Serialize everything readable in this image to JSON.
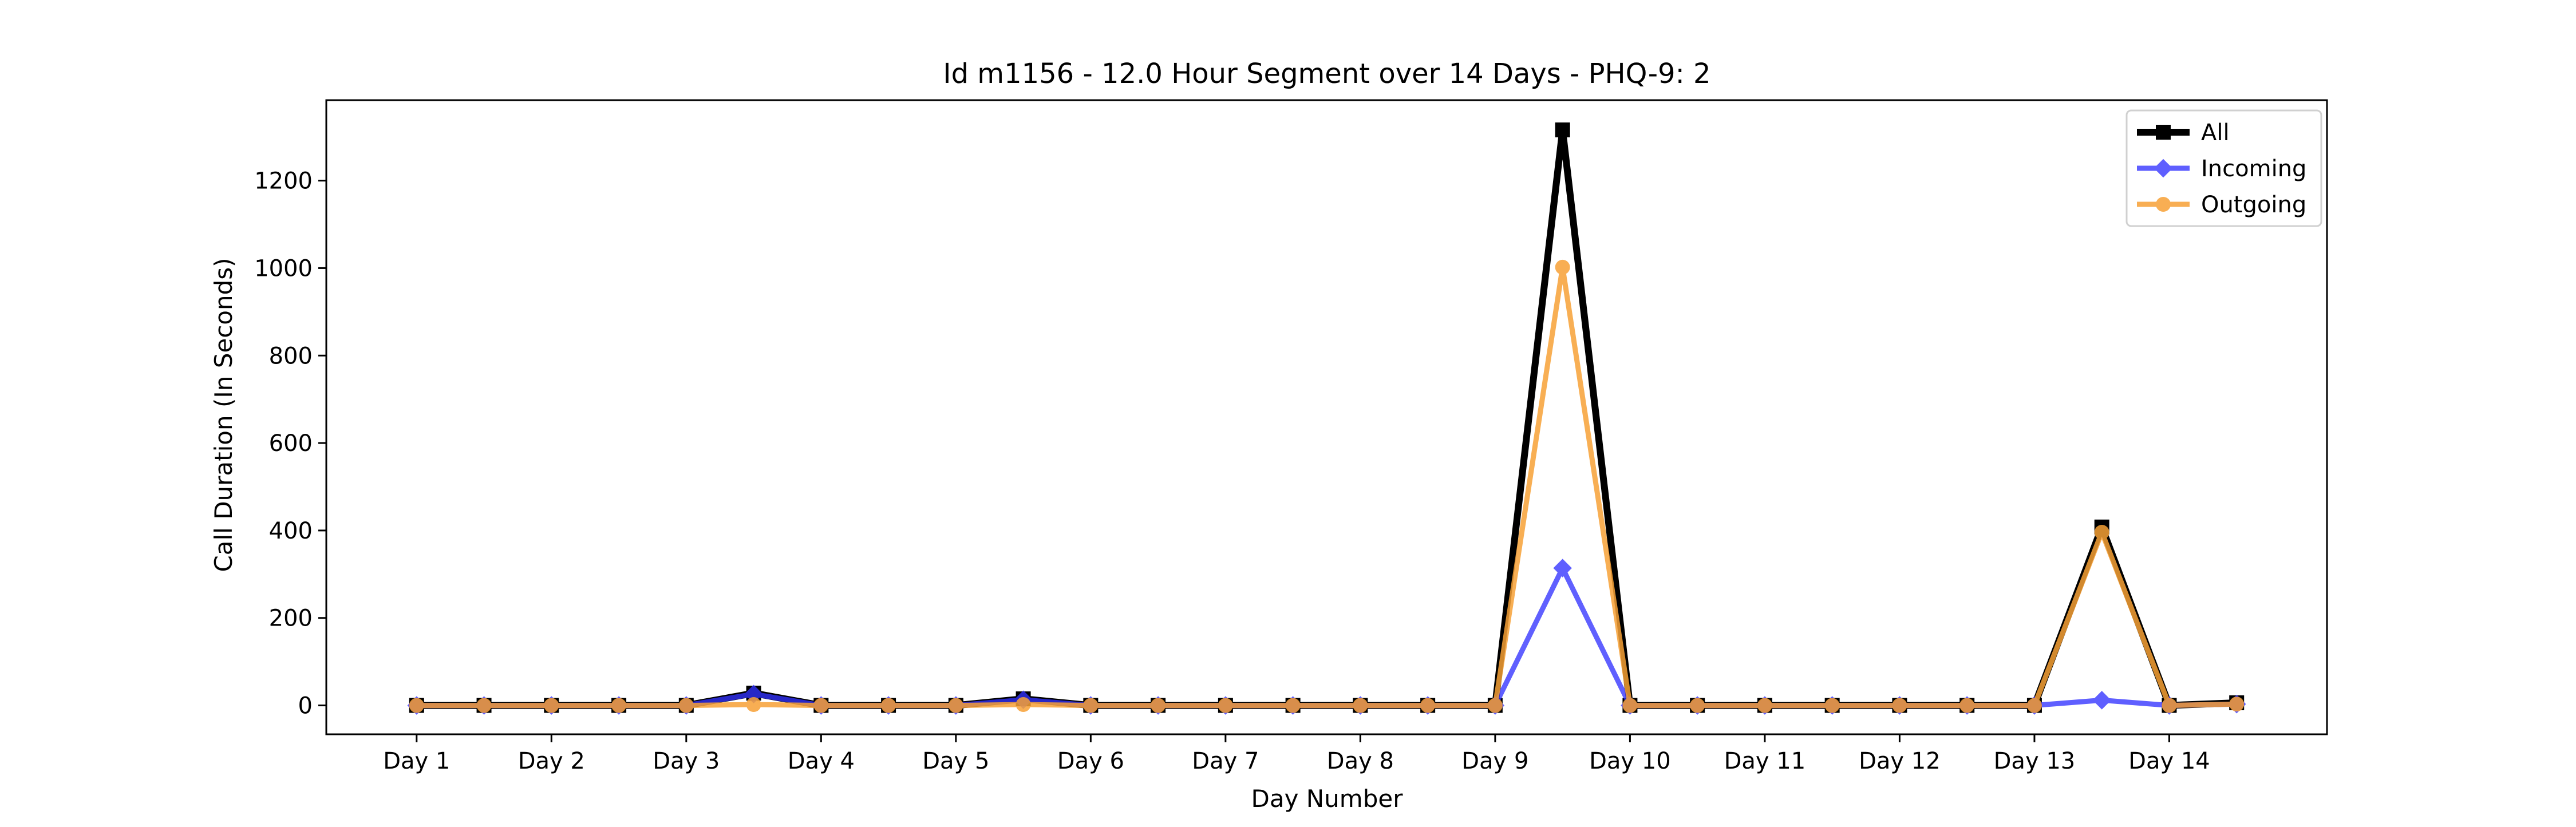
{
  "chart_data": {
    "type": "line",
    "title": "Id m1156 - 12.0 Hour Segment over 14 Days - PHQ-9: 2",
    "xlabel": "Day Number",
    "ylabel": "Call Duration (In Seconds)",
    "x": [
      1,
      1.5,
      2,
      2.5,
      3,
      3.5,
      4,
      4.5,
      5,
      5.5,
      6,
      6.5,
      7,
      7.5,
      8,
      8.5,
      9,
      9.5,
      10,
      10.5,
      11,
      11.5,
      12,
      12.5,
      13,
      13.5,
      14,
      14.5
    ],
    "xticks": [
      1,
      2,
      3,
      4,
      5,
      6,
      7,
      8,
      9,
      10,
      11,
      12,
      13,
      14
    ],
    "xtick_labels": [
      "Day 1",
      "Day 2",
      "Day 3",
      "Day 4",
      "Day 5",
      "Day 6",
      "Day 7",
      "Day 8",
      "Day 9",
      "Day 10",
      "Day 11",
      "Day 12",
      "Day 13",
      "Day 14"
    ],
    "yticks": [
      0,
      200,
      400,
      600,
      800,
      1000,
      1200
    ],
    "ytick_labels": [
      "0",
      "200",
      "400",
      "600",
      "800",
      "1000",
      "1200"
    ],
    "xlim": [
      0.33,
      15.17
    ],
    "ylim": [
      -66,
      1384
    ],
    "legend_position": "top-right",
    "grid": false,
    "series": [
      {
        "name": "All",
        "color": "#000000",
        "marker": "square",
        "values": [
          0,
          0,
          0,
          0,
          0,
          28,
          0,
          0,
          0,
          15,
          0,
          0,
          0,
          0,
          0,
          0,
          0,
          1316,
          0,
          0,
          0,
          0,
          0,
          0,
          0,
          408,
          0,
          6
        ]
      },
      {
        "name": "Incoming",
        "color": "#3333ff",
        "marker": "diamond",
        "values": [
          0,
          0,
          0,
          0,
          0,
          26,
          0,
          0,
          0,
          13,
          0,
          0,
          0,
          0,
          0,
          0,
          0,
          314,
          0,
          0,
          0,
          0,
          0,
          0,
          0,
          12,
          0,
          3
        ]
      },
      {
        "name": "Outgoing",
        "color": "#f7a136",
        "marker": "circle",
        "values": [
          0,
          0,
          0,
          0,
          0,
          2,
          0,
          0,
          0,
          2,
          0,
          0,
          0,
          0,
          0,
          0,
          0,
          1002,
          0,
          0,
          0,
          0,
          0,
          0,
          0,
          396,
          0,
          3
        ]
      }
    ]
  }
}
